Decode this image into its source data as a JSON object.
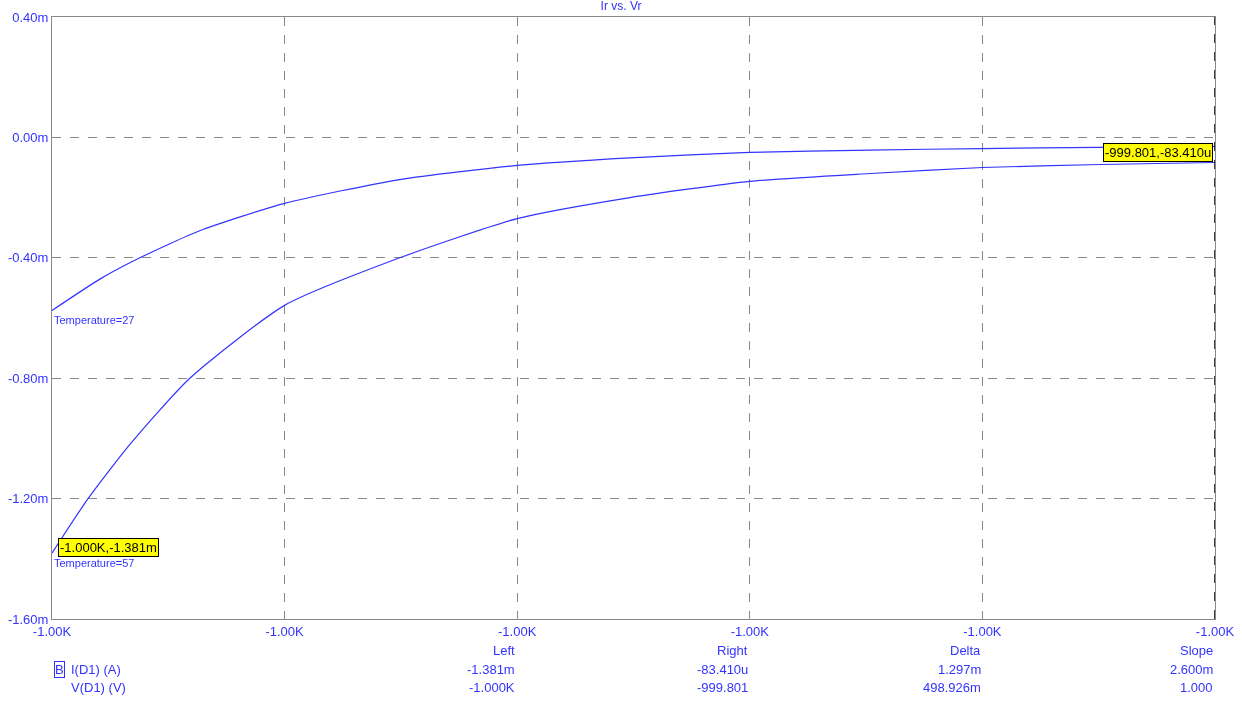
{
  "chart_data": {
    "type": "line",
    "title": "Ir vs. Vr",
    "series": [
      {
        "name": "Temperature=27",
        "color": "#3333ff",
        "x": [
          -1000,
          -999.9917,
          -999.9849,
          -999.9746,
          -999.96,
          -999.9402,
          -999.92,
          -999.9006,
          -999.88,
          -999.8593,
          -999.84,
          -999.8198,
          -999.8
        ],
        "values": [
          -0.575,
          -0.47,
          -0.4,
          -0.31,
          -0.219,
          -0.14,
          -0.093,
          -0.068,
          -0.05,
          -0.042,
          -0.037,
          -0.033,
          -0.03
        ]
      },
      {
        "name": "Temperature=57",
        "color": "#3333ff",
        "x": [
          -1000,
          -999.9938,
          -999.9866,
          -999.9763,
          -999.96,
          -999.9402,
          -999.92,
          -999.9006,
          -999.88,
          -999.8593,
          -999.84,
          -999.8198,
          -999.8
        ],
        "values": [
          -1.381,
          -1.2,
          -1.02,
          -0.8,
          -0.558,
          -0.4,
          -0.27,
          -0.2,
          -0.146,
          -0.12,
          -0.1,
          -0.09,
          -0.0834
        ]
      }
    ],
    "xlim": [
      -1000,
      -999.8
    ],
    "xticks": [
      {
        "value": -1000,
        "label": "-1.00K"
      },
      {
        "value": -999.96,
        "label": "-1.00K"
      },
      {
        "value": -999.92,
        "label": "-1.00K"
      },
      {
        "value": -999.88,
        "label": "-1.00K"
      },
      {
        "value": -999.84,
        "label": "-1.00K"
      },
      {
        "value": -999.8,
        "label": "-1.00K"
      }
    ],
    "ylim": [
      -1.6,
      0.4
    ],
    "yticks": [
      {
        "value": 0.4,
        "label": "0.40m"
      },
      {
        "value": 0,
        "label": "0.00m"
      },
      {
        "value": -0.4,
        "label": "-0.40m"
      },
      {
        "value": -0.8,
        "label": "-0.80m"
      },
      {
        "value": -1.2,
        "label": "-1.20m"
      },
      {
        "value": -1.6,
        "label": "-1.60m"
      }
    ],
    "grid": true,
    "legend": false,
    "marker": "none",
    "line_style": "solid",
    "ref_lines": [
      {
        "axis": "x",
        "value": -999.8,
        "color": "#000000",
        "line_style": "dashed"
      }
    ],
    "annotations": [
      "Left",
      "Right",
      "Delta",
      "Slope",
      "B",
      "I(D1) (A)",
      "-1.381m",
      "-83.410u",
      "1.297m",
      "2.600m",
      "V(D1) (V)",
      "-1.000K",
      "-999.801",
      "498.926m",
      "1.000",
      {
        "text": "-999.801,-83.410u",
        "x": -999.8,
        "y": -0.0834
      },
      {
        "text": "-1.000K,-1.381m",
        "x": -1000,
        "y": -1.381
      }
    ]
  }
}
